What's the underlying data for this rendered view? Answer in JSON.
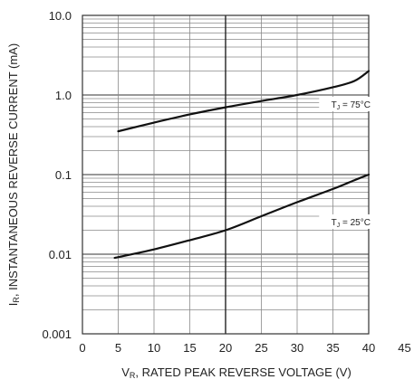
{
  "chart_data": {
    "type": "line",
    "title": "",
    "xlabel": {
      "main": "V",
      "sub": "R",
      "rest": ", RATED PEAK REVERSE VOLTAGE (V)"
    },
    "ylabel": {
      "main": "I",
      "sub": "R",
      "rest": ", INSTANTANEOUS REVERSE CURRENT (mA)"
    },
    "xlim": [
      0,
      45
    ],
    "ylim": [
      0.001,
      10
    ],
    "yscale": "log",
    "grid": true,
    "xticks": [
      {
        "value": 0,
        "label": "0"
      },
      {
        "value": 5,
        "label": "5"
      },
      {
        "value": 10,
        "label": "10"
      },
      {
        "value": 15,
        "label": "15"
      },
      {
        "value": 20,
        "label": "20"
      },
      {
        "value": 25,
        "label": "25"
      },
      {
        "value": 30,
        "label": "30"
      },
      {
        "value": 35,
        "label": "35"
      },
      {
        "value": 40,
        "label": "40"
      },
      {
        "value": 45,
        "label": "45"
      }
    ],
    "yticks": [
      {
        "value": 10,
        "label": "10.0"
      },
      {
        "value": 1,
        "label": "1.0"
      },
      {
        "value": 0.1,
        "label": "0.1"
      },
      {
        "value": 0.01,
        "label": "0.01"
      },
      {
        "value": 0.001,
        "label": "0.001"
      }
    ],
    "series": [
      {
        "x": [
          5,
          10,
          15,
          20,
          25,
          30,
          35,
          38,
          40
        ],
        "y": [
          0.35,
          0.45,
          0.57,
          0.7,
          0.84,
          1.0,
          1.25,
          1.5,
          2.0
        ]
      },
      {
        "x": [
          4.5,
          10,
          15,
          20,
          25,
          30,
          35,
          38,
          40
        ],
        "y": [
          0.009,
          0.0115,
          0.015,
          0.02,
          0.03,
          0.045,
          0.066,
          0.085,
          0.1
        ]
      }
    ],
    "annotations": [
      {
        "main": "T",
        "sub": "J",
        "rest": " = 75°C",
        "x": 37.5,
        "y": 0.75
      },
      {
        "main": "T",
        "sub": "J",
        "rest": " = 25°C",
        "x": 37.5,
        "y": 0.025
      }
    ]
  }
}
